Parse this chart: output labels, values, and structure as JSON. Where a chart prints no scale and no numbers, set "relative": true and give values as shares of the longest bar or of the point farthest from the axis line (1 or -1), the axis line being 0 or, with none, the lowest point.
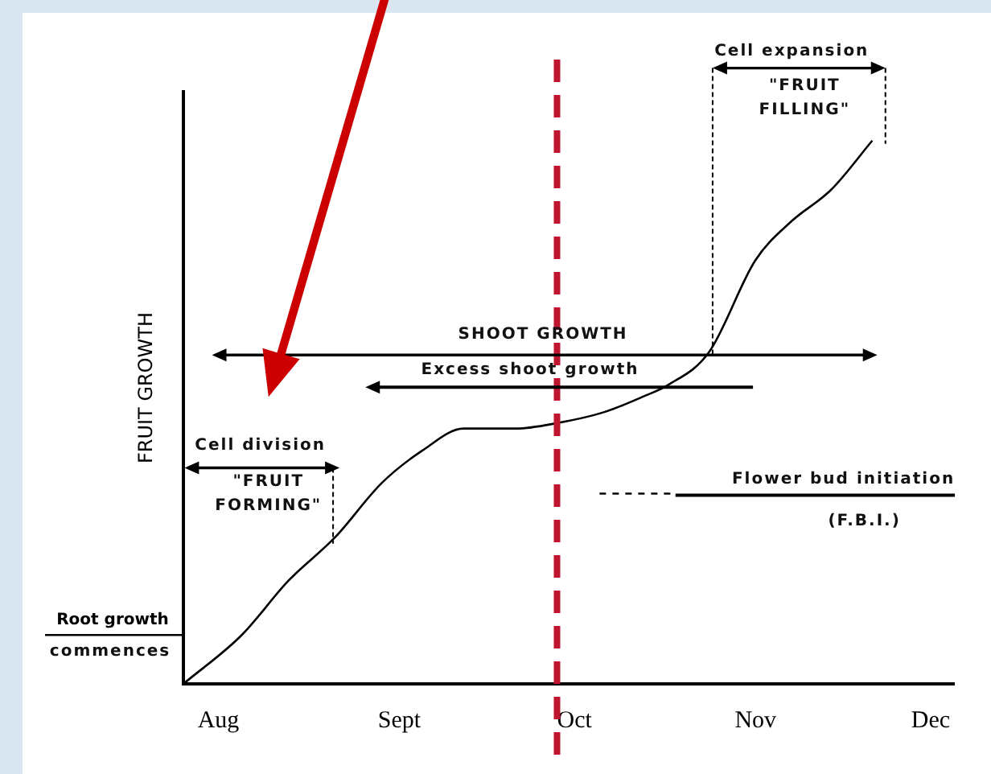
{
  "chart_data": {
    "type": "line",
    "ylabel": "FRUIT GROWTH",
    "relative": true,
    "x": [
      "--07-26",
      "--08-05",
      "--08-13",
      "--08-21",
      "--08-29",
      "--09-05",
      "--09-12",
      "--09-21",
      "--09-28",
      "--10-06",
      "--10-13",
      "--10-17",
      "--10-24",
      "--11-01",
      "--11-07",
      "--11-14",
      "--11-21"
    ],
    "values": [
      0,
      0.09,
      0.19,
      0.27,
      0.37,
      0.43,
      0.47,
      0.47,
      0.48,
      0.5,
      0.53,
      0.55,
      0.61,
      0.78,
      0.85,
      0.91,
      1
    ],
    "color": "#000000",
    "xlim": [
      "--07-26",
      "--12-05"
    ],
    "xticks": [
      {
        "value": "--08-01",
        "label": "Aug"
      },
      {
        "value": "--09-01",
        "label": "Sept"
      },
      {
        "value": "--10-01",
        "label": "Oct"
      },
      {
        "value": "--11-01",
        "label": "Nov"
      },
      {
        "value": "--12-01",
        "label": "Dec"
      }
    ],
    "ref_lines": [
      {
        "axis": "x",
        "value": "--09-28",
        "color": "#c0152f",
        "line_style": "dashed"
      },
      {
        "axis": "y",
        "value": 0.09,
        "label": "Root growth",
        "color": "#000000"
      }
    ],
    "annotations": [
      "Cell expansion",
      "\"FRUIT FILLING\"",
      "SHOOT GROWTH",
      "Excess shoot growth",
      "Cell division",
      "\"FRUIT FORMING\"",
      "Flower bud initiation",
      "(F.B.I.)",
      "commences"
    ],
    "grid": false,
    "legend": false
  }
}
